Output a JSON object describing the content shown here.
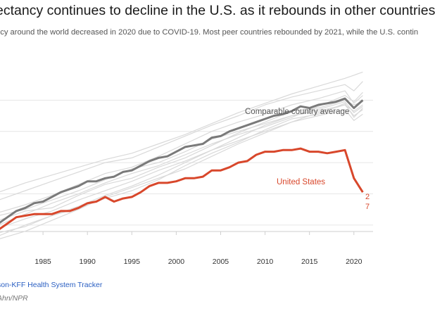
{
  "header": {
    "title": "ectancy continues to decline in the U.S. as it rebounds in other countries",
    "subtitle": "ncy around the world decreased in 2020 due to COVID-19. Most peer countries rebounded by 2021, while the U.S. contin"
  },
  "footer": {
    "source": "son-KFF Health System Tracker",
    "credit": "Ahn/NPR"
  },
  "colors": {
    "us": "#d8472b",
    "average": "#7a7a7a",
    "peers": "#d9d9d9",
    "grid": "#e6e6e6",
    "tick_text": "#333333"
  },
  "chart_data": {
    "type": "line",
    "title": "",
    "xlabel": "",
    "ylabel": "",
    "xlim": [
      1980,
      2022
    ],
    "ylim": [
      73,
      84
    ],
    "x_ticks": [
      1985,
      1990,
      1995,
      2000,
      2005,
      2010,
      2015,
      2020
    ],
    "x_tick_labels": [
      "1985",
      "1990",
      "1995",
      "2000",
      "2005",
      "2010",
      "2015",
      "2020"
    ],
    "y_grid": [
      74,
      76,
      78,
      80,
      82
    ],
    "grid": true,
    "annotations": {
      "us": "United States",
      "average": "Comparable country average",
      "us_end_value_1": "2",
      "us_end_value_2": "7"
    },
    "series": [
      {
        "name": "United States",
        "x": [
          1980,
          1981,
          1982,
          1983,
          1984,
          1985,
          1986,
          1987,
          1988,
          1989,
          1990,
          1991,
          1992,
          1993,
          1994,
          1995,
          1996,
          1997,
          1998,
          1999,
          2000,
          2001,
          2002,
          2003,
          2004,
          2005,
          2006,
          2007,
          2008,
          2009,
          2010,
          2011,
          2012,
          2013,
          2014,
          2015,
          2016,
          2017,
          2018,
          2019,
          2020,
          2021
        ],
        "values": [
          73.7,
          74.1,
          74.5,
          74.6,
          74.7,
          74.7,
          74.7,
          74.9,
          74.9,
          75.1,
          75.4,
          75.5,
          75.8,
          75.5,
          75.7,
          75.8,
          76.1,
          76.5,
          76.7,
          76.7,
          76.8,
          77.0,
          77.0,
          77.1,
          77.5,
          77.5,
          77.7,
          78.0,
          78.1,
          78.5,
          78.7,
          78.7,
          78.8,
          78.8,
          78.9,
          78.7,
          78.7,
          78.6,
          78.7,
          78.8,
          77.0,
          76.1
        ]
      },
      {
        "name": "Comparable country average",
        "x": [
          1980,
          1981,
          1982,
          1983,
          1984,
          1985,
          1986,
          1987,
          1988,
          1989,
          1990,
          1991,
          1992,
          1993,
          1994,
          1995,
          1996,
          1997,
          1998,
          1999,
          2000,
          2001,
          2002,
          2003,
          2004,
          2005,
          2006,
          2007,
          2008,
          2009,
          2010,
          2011,
          2012,
          2013,
          2014,
          2015,
          2016,
          2017,
          2018,
          2019,
          2020,
          2021
        ],
        "values": [
          74.1,
          74.5,
          74.9,
          75.1,
          75.4,
          75.5,
          75.8,
          76.1,
          76.3,
          76.5,
          76.8,
          76.8,
          77.0,
          77.1,
          77.4,
          77.5,
          77.8,
          78.1,
          78.3,
          78.4,
          78.7,
          79.0,
          79.1,
          79.2,
          79.6,
          79.7,
          80.0,
          80.2,
          80.4,
          80.6,
          80.8,
          81.0,
          81.1,
          81.3,
          81.6,
          81.5,
          81.7,
          81.8,
          81.9,
          82.1,
          81.5,
          82.0
        ]
      },
      {
        "x": [
          1980,
          1983,
          1986,
          1989,
          1992,
          1995,
          1998,
          2001,
          2004,
          2007,
          2010,
          2013,
          2016,
          2019,
          2020,
          2021
        ],
        "values": [
          74.8,
          75.3,
          75.9,
          76.6,
          77.3,
          77.7,
          78.4,
          79.2,
          80.0,
          80.6,
          81.1,
          81.7,
          82.1,
          82.6,
          81.8,
          82.3
        ]
      },
      {
        "x": [
          1980,
          1983,
          1986,
          1989,
          1992,
          1995,
          1998,
          2001,
          2004,
          2007,
          2010,
          2013,
          2016,
          2019,
          2020,
          2021
        ],
        "values": [
          75.6,
          76.2,
          76.8,
          77.4,
          78.0,
          78.3,
          79.0,
          79.7,
          80.4,
          81.0,
          81.7,
          82.2,
          82.6,
          83.0,
          82.6,
          83.2
        ]
      },
      {
        "x": [
          1980,
          1983,
          1986,
          1989,
          1992,
          1995,
          1998,
          2001,
          2004,
          2007,
          2010,
          2013,
          2016,
          2019,
          2020,
          2021
        ],
        "values": [
          73.5,
          73.9,
          74.6,
          75.2,
          75.9,
          76.5,
          77.2,
          78.0,
          78.8,
          79.4,
          80.0,
          80.6,
          81.2,
          81.7,
          81.0,
          81.4
        ]
      },
      {
        "x": [
          1980,
          1983,
          1986,
          1989,
          1992,
          1995,
          1998,
          2001,
          2004,
          2007,
          2010,
          2013,
          2016,
          2019,
          2020,
          2021
        ],
        "values": [
          74.3,
          74.9,
          75.1,
          75.9,
          76.6,
          77.0,
          77.7,
          78.3,
          79.1,
          79.9,
          80.6,
          81.3,
          81.5,
          82.0,
          81.7,
          81.9
        ]
      },
      {
        "x": [
          1980,
          1983,
          1986,
          1989,
          1992,
          1995,
          1998,
          2001,
          2004,
          2007,
          2010,
          2013,
          2016,
          2019,
          2020,
          2021
        ],
        "values": [
          73.1,
          73.6,
          74.3,
          75.0,
          75.8,
          76.4,
          77.0,
          77.6,
          78.4,
          79.2,
          79.9,
          80.6,
          81.0,
          81.4,
          80.7,
          81.1
        ]
      },
      {
        "x": [
          1980,
          1983,
          1986,
          1989,
          1992,
          1995,
          1998,
          2001,
          2004,
          2007,
          2010,
          2013,
          2016,
          2019,
          2020,
          2021
        ],
        "values": [
          74.6,
          75.0,
          75.6,
          76.2,
          76.9,
          77.6,
          78.0,
          78.7,
          79.5,
          80.0,
          80.5,
          81.0,
          81.4,
          81.9,
          81.2,
          81.6
        ]
      },
      {
        "x": [
          1980,
          1983,
          1986,
          1989,
          1992,
          1995,
          1998,
          2001,
          2004,
          2007,
          2010,
          2013,
          2016,
          2019,
          2020,
          2021
        ],
        "values": [
          76.1,
          76.7,
          77.2,
          77.7,
          78.2,
          78.6,
          79.2,
          79.8,
          80.5,
          81.2,
          81.8,
          82.4,
          82.9,
          83.4,
          83.6,
          83.8
        ]
      },
      {
        "x": [
          1980,
          1983,
          1986,
          1989,
          1992,
          1995,
          1998,
          2001,
          2004,
          2007,
          2010,
          2013,
          2016,
          2019,
          2020,
          2021
        ],
        "values": [
          73.8,
          74.4,
          74.9,
          75.6,
          76.2,
          76.8,
          77.5,
          78.1,
          78.8,
          79.6,
          80.4,
          81.0,
          81.3,
          81.7,
          81.3,
          81.7
        ]
      },
      {
        "x": [
          1980,
          1983,
          1986,
          1989,
          1992,
          1995,
          1998,
          2001,
          2004,
          2007,
          2010,
          2013,
          2016,
          2019,
          2020,
          2021
        ],
        "values": [
          74.0,
          74.7,
          75.4,
          76.0,
          76.7,
          77.3,
          77.8,
          78.5,
          79.2,
          79.8,
          80.3,
          80.9,
          81.6,
          82.3,
          81.9,
          82.5
        ]
      },
      {
        "x": [
          1980,
          1983,
          1986,
          1989,
          1992,
          1995,
          1998,
          2001,
          2004,
          2007,
          2010,
          2013,
          2016,
          2019,
          2020,
          2021
        ],
        "values": [
          73.3,
          74.0,
          74.6,
          75.1,
          75.7,
          76.2,
          76.9,
          77.8,
          78.6,
          79.3,
          80.1,
          80.8,
          81.1,
          81.8,
          80.9,
          81.5
        ]
      }
    ]
  }
}
